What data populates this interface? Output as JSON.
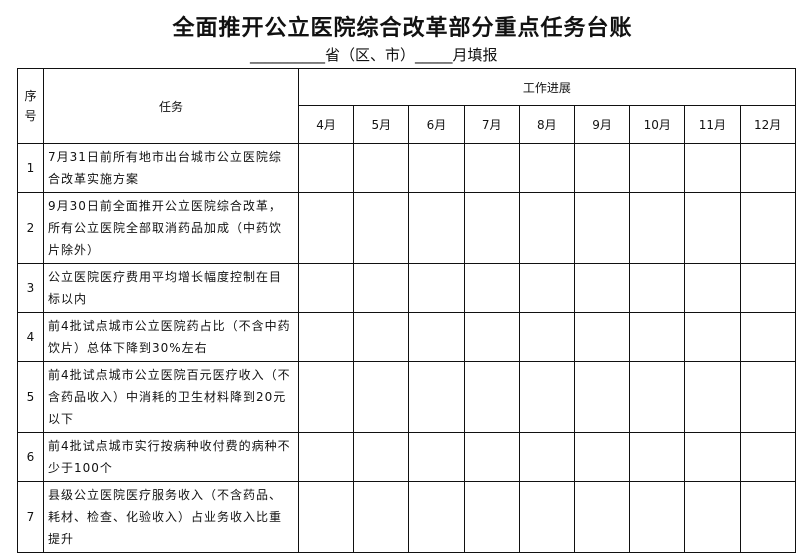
{
  "title": "全面推开公立医院综合改革部分重点任务台账",
  "subtitle": "__________省（区、市）_____月填报",
  "headers": {
    "seq": "序号",
    "task": "任务",
    "progress": "工作进展"
  },
  "months": [
    "4月",
    "5月",
    "6月",
    "7月",
    "8月",
    "9月",
    "10月",
    "11月",
    "12月"
  ],
  "rows": [
    {
      "seq": "1",
      "task": "7月31日前所有地市出台城市公立医院综合改革实施方案"
    },
    {
      "seq": "2",
      "task": "9月30日前全面推开公立医院综合改革，所有公立医院全部取消药品加成（中药饮片除外）"
    },
    {
      "seq": "3",
      "task": "公立医院医疗费用平均增长幅度控制在目标以内"
    },
    {
      "seq": "4",
      "task": "前4批试点城市公立医院药占比（不含中药饮片）总体下降到30%左右"
    },
    {
      "seq": "5",
      "task": "前4批试点城市公立医院百元医疗收入（不含药品收入）中消耗的卫生材料降到20元以下"
    },
    {
      "seq": "6",
      "task": "前4批试点城市实行按病种收付费的病种不少于100个"
    },
    {
      "seq": "7",
      "task": "县级公立医院医疗服务收入（不含药品、耗材、检查、化验收入）占业务收入比重提升"
    }
  ]
}
